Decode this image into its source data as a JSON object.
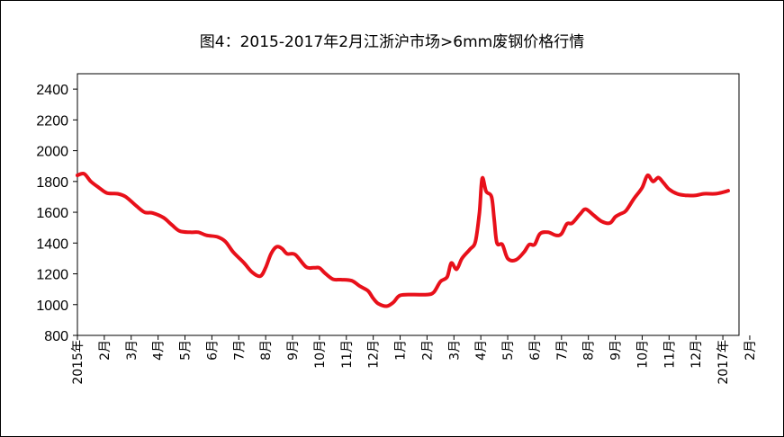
{
  "chart_data": {
    "type": "line",
    "title": "图4：2015-2017年2月江浙沪市场>6mm废钢价格行情",
    "xlabel": "",
    "ylabel": "",
    "ylim": [
      800,
      2500
    ],
    "yticks": [
      800,
      1000,
      1200,
      1400,
      1600,
      1800,
      2000,
      2200,
      2400
    ],
    "grid": false,
    "legend": "none",
    "line_color": "#e8101a",
    "x_months": [
      0,
      1,
      2,
      3,
      4,
      5,
      6,
      7,
      8,
      9,
      10,
      11,
      12,
      13,
      14,
      15,
      16,
      17,
      18,
      19,
      20,
      21,
      22,
      23,
      24,
      25
    ],
    "x_tick_labels": [
      "2015年",
      "2月",
      "3月",
      "4月",
      "5月",
      "6月",
      "7月",
      "8月",
      "9月",
      "10月",
      "11月",
      "12月",
      "1月",
      "2月",
      "3月",
      "4月",
      "5月",
      "6月",
      "7月",
      "8月",
      "9月",
      "10月",
      "11月",
      "12月",
      "2017年",
      "2月"
    ],
    "series": [
      {
        "values": [
          [
            0.0,
            1840
          ],
          [
            0.25,
            1850
          ],
          [
            0.5,
            1800
          ],
          [
            0.8,
            1760
          ],
          [
            1.1,
            1725
          ],
          [
            1.5,
            1720
          ],
          [
            1.8,
            1700
          ],
          [
            2.2,
            1640
          ],
          [
            2.5,
            1600
          ],
          [
            2.8,
            1595
          ],
          [
            3.2,
            1565
          ],
          [
            3.5,
            1520
          ],
          [
            3.8,
            1478
          ],
          [
            4.2,
            1470
          ],
          [
            4.5,
            1470
          ],
          [
            4.8,
            1450
          ],
          [
            5.2,
            1440
          ],
          [
            5.5,
            1410
          ],
          [
            5.8,
            1340
          ],
          [
            6.2,
            1270
          ],
          [
            6.5,
            1210
          ],
          [
            6.8,
            1185
          ],
          [
            7.0,
            1240
          ],
          [
            7.2,
            1330
          ],
          [
            7.4,
            1375
          ],
          [
            7.6,
            1365
          ],
          [
            7.8,
            1330
          ],
          [
            8.1,
            1325
          ],
          [
            8.5,
            1245
          ],
          [
            8.8,
            1240
          ],
          [
            9.0,
            1238
          ],
          [
            9.2,
            1205
          ],
          [
            9.5,
            1165
          ],
          [
            9.8,
            1162
          ],
          [
            10.2,
            1155
          ],
          [
            10.5,
            1120
          ],
          [
            10.8,
            1090
          ],
          [
            11.0,
            1040
          ],
          [
            11.2,
            1005
          ],
          [
            11.5,
            990
          ],
          [
            11.75,
            1015
          ],
          [
            12.0,
            1060
          ],
          [
            12.5,
            1065
          ],
          [
            13.0,
            1065
          ],
          [
            13.25,
            1080
          ],
          [
            13.5,
            1150
          ],
          [
            13.75,
            1180
          ],
          [
            13.9,
            1270
          ],
          [
            14.1,
            1230
          ],
          [
            14.3,
            1300
          ],
          [
            14.6,
            1360
          ],
          [
            14.8,
            1410
          ],
          [
            14.95,
            1600
          ],
          [
            15.05,
            1820
          ],
          [
            15.2,
            1735
          ],
          [
            15.4,
            1700
          ],
          [
            15.5,
            1550
          ],
          [
            15.6,
            1400
          ],
          [
            15.8,
            1390
          ],
          [
            16.0,
            1300
          ],
          [
            16.3,
            1290
          ],
          [
            16.6,
            1340
          ],
          [
            16.8,
            1390
          ],
          [
            17.0,
            1390
          ],
          [
            17.2,
            1460
          ],
          [
            17.5,
            1470
          ],
          [
            17.8,
            1450
          ],
          [
            18.0,
            1460
          ],
          [
            18.2,
            1525
          ],
          [
            18.4,
            1530
          ],
          [
            18.7,
            1590
          ],
          [
            18.9,
            1620
          ],
          [
            19.2,
            1580
          ],
          [
            19.5,
            1540
          ],
          [
            19.8,
            1530
          ],
          [
            20.0,
            1570
          ],
          [
            20.2,
            1590
          ],
          [
            20.4,
            1610
          ],
          [
            20.7,
            1690
          ],
          [
            21.0,
            1760
          ],
          [
            21.2,
            1840
          ],
          [
            21.4,
            1800
          ],
          [
            21.6,
            1825
          ],
          [
            21.8,
            1790
          ],
          [
            22.0,
            1750
          ],
          [
            22.3,
            1720
          ],
          [
            22.6,
            1710
          ],
          [
            23.0,
            1710
          ],
          [
            23.3,
            1720
          ],
          [
            23.7,
            1720
          ],
          [
            24.0,
            1730
          ],
          [
            24.2,
            1740
          ]
        ]
      }
    ]
  }
}
